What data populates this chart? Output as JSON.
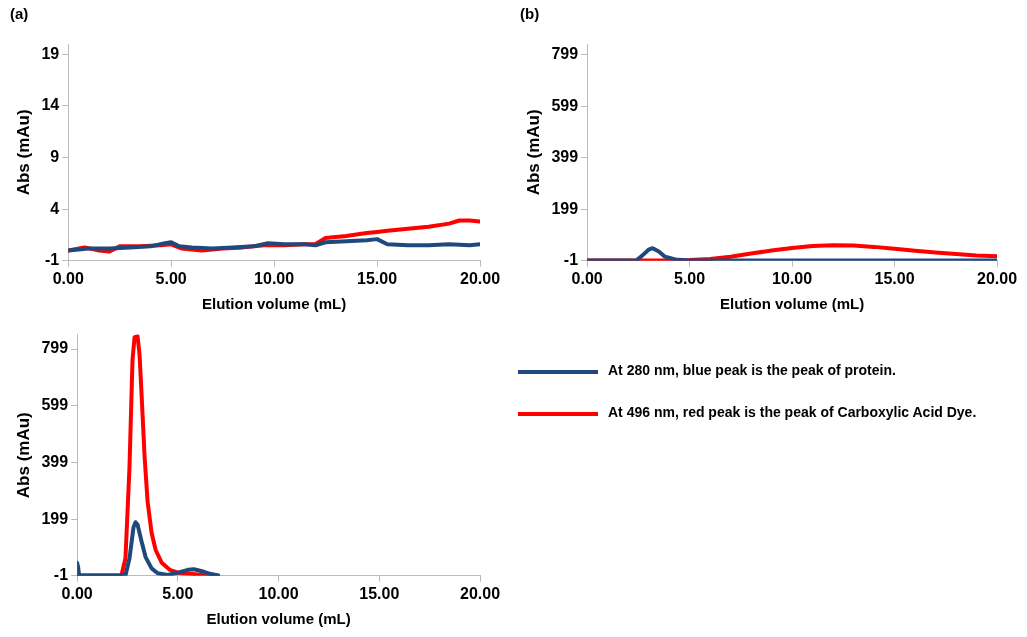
{
  "chart_data": [
    {
      "type": "line",
      "title": "(a)",
      "xlabel": "Elution volume (mL)",
      "ylabel": "Abs (mAu)",
      "xlim": [
        0,
        20
      ],
      "xticks": [
        {
          "value": 0,
          "label": "0.00"
        },
        {
          "value": 5,
          "label": "5.00"
        },
        {
          "value": 10,
          "label": "10.00"
        },
        {
          "value": 15,
          "label": "15.00"
        },
        {
          "value": 20,
          "label": "20.00"
        }
      ],
      "ylim": [
        -1,
        20
      ],
      "yticks": [
        -1,
        4,
        9,
        14,
        19
      ],
      "grid": false,
      "legend": false,
      "marker": "none",
      "line_style": "solid",
      "series": [
        {
          "color": "#1f497d",
          "x": [
            0,
            1,
            2,
            3,
            4,
            4.7,
            5,
            5.4,
            6,
            7,
            8,
            9,
            9.7,
            10.5,
            11.5,
            12,
            12.5,
            13.5,
            14.5,
            15,
            15.5,
            16.5,
            17.5,
            18.5,
            19.5,
            20
          ],
          "values": [
            0,
            0.2,
            0.2,
            0.3,
            0.4,
            0.7,
            0.8,
            0.4,
            0.3,
            0.2,
            0.3,
            0.4,
            0.7,
            0.6,
            0.6,
            0.5,
            0.8,
            0.9,
            1.0,
            1.1,
            0.6,
            0.5,
            0.5,
            0.6,
            0.5,
            0.6
          ]
        },
        {
          "color": "#ff0000",
          "x": [
            0,
            0.8,
            1.5,
            2,
            2.5,
            3.5,
            4.5,
            5,
            5.5,
            6.5,
            7.5,
            8.5,
            9.5,
            10.5,
            11.5,
            12,
            12.5,
            13.5,
            14.5,
            15,
            15.5,
            16.5,
            17.5,
            18.5,
            19,
            19.5,
            20
          ],
          "values": [
            0,
            0.3,
            0,
            -0.1,
            0.4,
            0.4,
            0.5,
            0.6,
            0.2,
            0,
            0.2,
            0.3,
            0.5,
            0.5,
            0.6,
            0.6,
            1.2,
            1.4,
            1.7,
            1.8,
            1.9,
            2.1,
            2.3,
            2.6,
            2.9,
            2.9,
            2.8
          ]
        }
      ]
    },
    {
      "type": "line",
      "title": "(b)",
      "xlabel": "Elution volume (mL)",
      "ylabel": "Abs (mAu)",
      "xlim": [
        0,
        20
      ],
      "xticks": [
        {
          "value": 0,
          "label": "0.00"
        },
        {
          "value": 5,
          "label": "5.00"
        },
        {
          "value": 10,
          "label": "10.00"
        },
        {
          "value": 15,
          "label": "15.00"
        },
        {
          "value": 20,
          "label": "20.00"
        }
      ],
      "ylim": [
        -1,
        840
      ],
      "yticks": [
        -1,
        199,
        399,
        599,
        799
      ],
      "grid": false,
      "legend": false,
      "marker": "none",
      "line_style": "solid",
      "series": [
        {
          "color": "#1f497d",
          "x": [
            0,
            2.4,
            2.7,
            3,
            3.2,
            3.5,
            3.8,
            4.3,
            5,
            10,
            15,
            20
          ],
          "values": [
            0,
            0,
            20,
            42,
            48,
            35,
            15,
            4,
            0,
            0,
            0,
            0
          ]
        },
        {
          "color": "#ff0000",
          "x": [
            0,
            4,
            5,
            6,
            7,
            8,
            9,
            10,
            11,
            12,
            13,
            14,
            15,
            16,
            17,
            18,
            19,
            20
          ],
          "values": [
            0,
            0,
            2,
            6,
            15,
            27,
            39,
            49,
            56,
            59,
            58,
            53,
            46,
            38,
            31,
            25,
            20,
            17
          ]
        }
      ]
    },
    {
      "type": "line",
      "xlabel": "Elution volume (mL)",
      "ylabel": "Abs (mAu)",
      "xlim": [
        0,
        20
      ],
      "xticks": [
        {
          "value": 0,
          "label": "0.00"
        },
        {
          "value": 5,
          "label": "5.00"
        },
        {
          "value": 10,
          "label": "10.00"
        },
        {
          "value": 15,
          "label": "15.00"
        },
        {
          "value": 20,
          "label": "20.00"
        }
      ],
      "ylim": [
        -1,
        850
      ],
      "yticks": [
        -1,
        199,
        399,
        599,
        799
      ],
      "grid": false,
      "legend": "right",
      "marker": "none",
      "line_style": "solid",
      "series": [
        {
          "name": "At 280 nm, blue peak is the peak of protein.",
          "color": "#1f497d",
          "x": [
            0,
            0.05,
            0.1,
            2.4,
            2.6,
            2.8,
            2.9,
            3.0,
            3.2,
            3.4,
            3.7,
            4,
            4.5,
            5,
            5.5,
            5.8,
            6.2,
            6.6,
            7
          ],
          "values": [
            45,
            30,
            0,
            0,
            60,
            170,
            188,
            180,
            120,
            65,
            25,
            8,
            2,
            10,
            20,
            22,
            15,
            6,
            0
          ]
        },
        {
          "name": "At 496 nm, red peak is the peak of Carboxylic Acid Dye.",
          "color": "#ff0000",
          "x": [
            0,
            2.2,
            2.4,
            2.6,
            2.75,
            2.85,
            3.0,
            3.1,
            3.2,
            3.35,
            3.5,
            3.7,
            3.9,
            4.2,
            4.6,
            5,
            6,
            7
          ],
          "values": [
            0,
            0,
            60,
            380,
            760,
            840,
            845,
            780,
            640,
            420,
            260,
            150,
            90,
            45,
            20,
            10,
            4,
            0
          ]
        }
      ]
    }
  ]
}
